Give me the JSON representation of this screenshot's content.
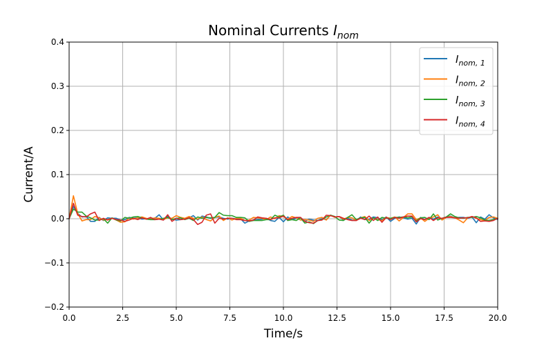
{
  "chart_data": {
    "type": "line",
    "title": "Nominal Currents I_nom",
    "title_main": "Nominal Currents ",
    "title_symbol": "I",
    "title_subscript": "nom",
    "xlabel": "Time/s",
    "ylabel": "Current/A",
    "xlim": [
      0,
      20
    ],
    "ylim": [
      -0.2,
      0.4
    ],
    "x_ticks": [
      0.0,
      2.5,
      5.0,
      7.5,
      10.0,
      12.5,
      15.0,
      17.5,
      20.0
    ],
    "x_tick_labels": [
      "0.0",
      "2.5",
      "5.0",
      "7.5",
      "10.0",
      "12.5",
      "15.0",
      "17.5",
      "20.0"
    ],
    "y_ticks": [
      -0.2,
      -0.1,
      0.0,
      0.1,
      0.2,
      0.3,
      0.4
    ],
    "y_tick_labels": [
      "−0.2",
      "−0.1",
      "0.0",
      "0.1",
      "0.2",
      "0.3",
      "0.4"
    ],
    "grid": true,
    "legend_position": "top-right",
    "x": [
      0.0,
      0.2,
      0.4,
      0.6,
      0.8,
      1.0,
      1.2,
      1.4,
      1.6,
      1.8,
      2.0,
      2.2,
      2.4,
      2.6,
      2.8,
      3.0,
      3.2,
      3.4,
      3.6,
      3.8,
      4.0,
      4.2,
      4.4,
      4.6,
      4.8,
      5.0,
      5.2,
      5.4,
      5.6,
      5.8,
      6.0,
      6.2,
      6.4,
      6.6,
      6.8,
      7.0,
      7.2,
      7.4,
      7.6,
      7.8,
      8.0,
      8.2,
      8.4,
      8.6,
      8.8,
      9.0,
      9.2,
      9.4,
      9.6,
      9.8,
      10.0,
      10.2,
      10.4,
      10.6,
      10.8,
      11.0,
      11.2,
      11.4,
      11.6,
      11.8,
      12.0,
      12.2,
      12.4,
      12.6,
      12.8,
      13.0,
      13.2,
      13.4,
      13.6,
      13.8,
      14.0,
      14.2,
      14.4,
      14.6,
      14.8,
      15.0,
      15.2,
      15.4,
      15.6,
      15.8,
      16.0,
      16.2,
      16.4,
      16.6,
      16.8,
      17.0,
      17.2,
      17.4,
      17.6,
      17.8,
      18.0,
      18.2,
      18.4,
      18.6,
      18.8,
      19.0,
      19.2,
      19.4,
      19.6,
      19.8,
      20.0
    ],
    "series": [
      {
        "name": "I_nom,1",
        "label_symbol": "I",
        "label_subscript": "nom, 1",
        "color": "#1f77b4",
        "values": [
          0.0,
          0.028,
          0.012,
          0.004,
          0.005,
          -0.006,
          -0.006,
          0.003,
          -0.004,
          0.002,
          0.001,
          0.001,
          -0.003,
          -0.002,
          0.003,
          0.001,
          0.002,
          -0.001,
          0.0,
          0.001,
          0.001,
          0.009,
          -0.003,
          0.006,
          -0.001,
          -0.003,
          -0.002,
          0.0,
          0.002,
          0.007,
          -0.003,
          0.006,
          0.004,
          0.001,
          0.003,
          0.004,
          0.001,
          -0.001,
          0.001,
          0.0,
          0.0,
          -0.01,
          -0.005,
          -0.003,
          -0.002,
          -0.001,
          0.001,
          -0.004,
          -0.006,
          0.003,
          -0.007,
          0.004,
          -0.002,
          0.001,
          0.002,
          -0.006,
          -0.001,
          -0.003,
          -0.004,
          0.0,
          -0.002,
          0.008,
          0.004,
          0.005,
          -0.003,
          0.001,
          -0.003,
          -0.004,
          0.004,
          -0.002,
          -0.001,
          0.004,
          0.002,
          -0.002,
          0.004,
          -0.006,
          0.001,
          0.004,
          0.002,
          -0.001,
          0.001,
          -0.012,
          0.003,
          -0.002,
          0.003,
          -0.001,
          0.004,
          -0.001,
          0.004,
          0.006,
          0.002,
          0.003,
          0.003,
          0.001,
          0.004,
          -0.009,
          0.004,
          -0.001,
          0.009,
          0.002,
          -0.002
        ]
      },
      {
        "name": "I_nom,2",
        "label_symbol": "I",
        "label_subscript": "nom, 2",
        "color": "#ff7f0e",
        "values": [
          0.0,
          0.052,
          0.012,
          -0.005,
          -0.002,
          -0.002,
          0.005,
          0.002,
          -0.003,
          -0.002,
          0.001,
          -0.003,
          -0.008,
          -0.007,
          0.002,
          -0.001,
          0.002,
          0.004,
          0.001,
          -0.001,
          0.002,
          0.001,
          -0.002,
          0.002,
          0.001,
          0.007,
          0.003,
          0.001,
          0.005,
          0.001,
          -0.001,
          0.004,
          -0.002,
          -0.005,
          0.003,
          0.006,
          -0.004,
          0.002,
          -0.003,
          0.001,
          0.001,
          -0.004,
          -0.003,
          0.003,
          0.002,
          0.001,
          -0.002,
          0.004,
          0.0,
          0.007,
          0.005,
          -0.001,
          0.005,
          0.002,
          -0.003,
          -0.002,
          -0.003,
          -0.006,
          0.001,
          0.003,
          -0.003,
          0.008,
          0.003,
          0.005,
          -0.001,
          0.003,
          0.002,
          -0.004,
          0.002,
          0.005,
          -0.004,
          0.002,
          -0.002,
          -0.004,
          0.003,
          0.001,
          0.004,
          -0.005,
          0.003,
          0.011,
          0.011,
          -0.002,
          0.002,
          -0.006,
          0.001,
          0.004,
          0.009,
          -0.003,
          0.003,
          0.005,
          0.002,
          -0.003,
          -0.009,
          0.002,
          0.005,
          0.001,
          -0.002,
          -0.004,
          0.003,
          0.004,
          0.001
        ]
      },
      {
        "name": "I_nom,3",
        "label_symbol": "I",
        "label_subscript": "nom, 3",
        "color": "#2ca02c",
        "values": [
          0.0,
          0.022,
          0.015,
          0.015,
          0.006,
          0.002,
          -0.003,
          -0.003,
          0.0,
          -0.01,
          0.002,
          -0.003,
          -0.005,
          0.003,
          0.001,
          0.004,
          0.005,
          0.002,
          -0.001,
          -0.002,
          -0.002,
          -0.001,
          0.001,
          0.003,
          -0.002,
          0.001,
          0.002,
          -0.002,
          0.001,
          -0.004,
          0.004,
          0.001,
          0.003,
          0.002,
          0.003,
          0.014,
          0.008,
          0.007,
          0.007,
          0.003,
          0.003,
          0.002,
          -0.006,
          -0.004,
          -0.004,
          -0.004,
          -0.002,
          -0.002,
          0.008,
          0.004,
          0.008,
          -0.004,
          -0.002,
          -0.004,
          0.002,
          -0.01,
          -0.007,
          -0.011,
          -0.004,
          -0.002,
          0.004,
          0.008,
          0.005,
          -0.003,
          -0.004,
          0.003,
          0.009,
          -0.002,
          0.002,
          0.003,
          -0.01,
          0.002,
          -0.004,
          0.003,
          0.001,
          0.001,
          0.003,
          0.003,
          0.004,
          0.002,
          0.004,
          -0.005,
          0.002,
          0.003,
          -0.002,
          0.011,
          -0.003,
          0.001,
          0.004,
          0.011,
          0.005,
          0.002,
          0.001,
          0.003,
          0.003,
          0.005,
          0.002,
          -0.003,
          -0.004,
          -0.002,
          0.001
        ]
      },
      {
        "name": "I_nom,4",
        "label_symbol": "I",
        "label_subscript": "nom, 4",
        "color": "#d62728",
        "values": [
          0.0,
          0.035,
          0.008,
          0.005,
          0.004,
          0.011,
          0.015,
          -0.004,
          0.001,
          -0.003,
          0.001,
          -0.002,
          -0.003,
          -0.006,
          -0.003,
          0.001,
          -0.002,
          0.002,
          -0.001,
          0.003,
          -0.002,
          -0.001,
          -0.003,
          0.009,
          -0.006,
          0.001,
          -0.002,
          -0.001,
          0.002,
          -0.002,
          -0.013,
          -0.008,
          0.008,
          0.011,
          -0.01,
          0.001,
          -0.001,
          0.001,
          0.001,
          -0.002,
          -0.002,
          -0.004,
          -0.005,
          -0.003,
          0.004,
          0.002,
          0.001,
          -0.002,
          0.002,
          0.002,
          0.006,
          -0.002,
          0.001,
          0.003,
          0.003,
          -0.006,
          -0.009,
          -0.01,
          -0.004,
          -0.003,
          0.008,
          0.007,
          0.004,
          0.005,
          0.001,
          -0.002,
          -0.004,
          -0.004,
          0.001,
          -0.002,
          0.006,
          -0.004,
          0.004,
          -0.008,
          0.003,
          -0.002,
          0.003,
          0.001,
          0.004,
          0.006,
          0.006,
          -0.007,
          0.0,
          -0.002,
          0.003,
          -0.004,
          0.002,
          0.001,
          0.003,
          0.003,
          0.002,
          0.001,
          0.002,
          0.002,
          0.005,
          0.002,
          -0.006,
          -0.005,
          -0.006,
          -0.004,
          0.001
        ]
      }
    ]
  }
}
